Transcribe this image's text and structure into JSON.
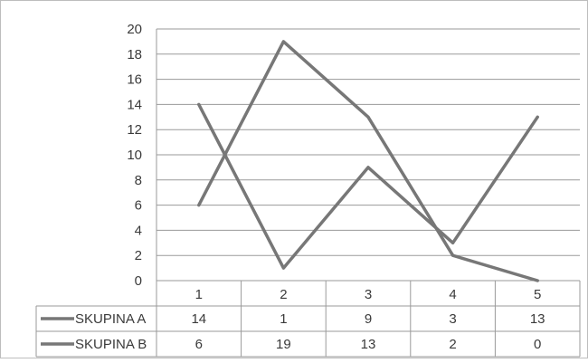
{
  "chart_data": {
    "type": "line",
    "title": "",
    "xlabel": "",
    "ylabel": "",
    "categories": [
      "1",
      "2",
      "3",
      "4",
      "5"
    ],
    "yticks": [
      "0",
      "2",
      "4",
      "6",
      "8",
      "10",
      "12",
      "14",
      "16",
      "18",
      "20"
    ],
    "ylim": [
      0,
      20
    ],
    "grid": true,
    "legend": "data-table",
    "series": [
      {
        "name": "SKUPINA A",
        "values": [
          14,
          1,
          9,
          3,
          13
        ],
        "color": "#777777"
      },
      {
        "name": "SKUPINA B",
        "values": [
          6,
          19,
          13,
          2,
          0
        ],
        "color": "#777777"
      }
    ]
  }
}
